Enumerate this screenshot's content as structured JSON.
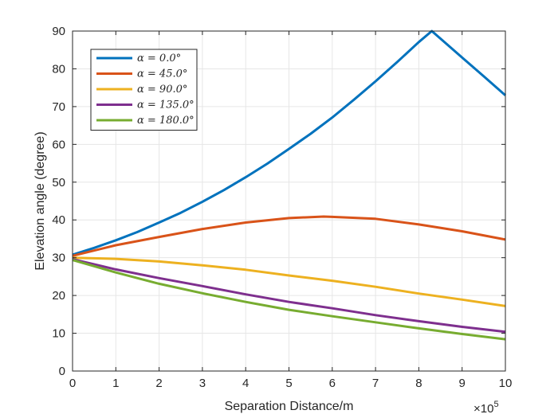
{
  "chart_data": {
    "type": "line",
    "title": "",
    "xlabel": "Separation Distance/m",
    "ylabel": "Elevation angle (degree)",
    "x_exponent_label": "×10",
    "x_exponent_power": "5",
    "xlim": [
      0,
      10
    ],
    "ylim": [
      0,
      90
    ],
    "xticks": [
      0,
      1,
      2,
      3,
      4,
      5,
      6,
      7,
      8,
      9,
      10
    ],
    "yticks": [
      0,
      10,
      20,
      30,
      40,
      50,
      60,
      70,
      80,
      90
    ],
    "xtick_labels": [
      "0",
      "1",
      "2",
      "3",
      "4",
      "5",
      "6",
      "7",
      "8",
      "9",
      "10"
    ],
    "ytick_labels": [
      "0",
      "10",
      "20",
      "30",
      "40",
      "50",
      "60",
      "70",
      "80",
      "90"
    ],
    "grid": true,
    "legend_position": "top-left",
    "series": [
      {
        "name": "α = 0.0°",
        "color": "#0072BD",
        "x": [
          0,
          0.5,
          1,
          1.5,
          2,
          2.5,
          3,
          3.5,
          4,
          4.5,
          5,
          5.5,
          6,
          6.5,
          7,
          7.5,
          8,
          8.3,
          8.6,
          9,
          9.5,
          10
        ],
        "y": [
          30.8,
          32.6,
          34.6,
          36.8,
          39.3,
          41.9,
          44.8,
          47.9,
          51.3,
          54.9,
          58.8,
          62.8,
          67.1,
          71.8,
          76.7,
          81.8,
          87.1,
          90,
          87.0,
          83.0,
          78.0,
          73.0
        ]
      },
      {
        "name": "α = 45.0°",
        "color": "#D95319",
        "x": [
          0,
          1,
          2,
          3,
          4,
          5,
          5.8,
          6,
          7,
          8,
          9,
          10
        ],
        "y": [
          30.5,
          33.3,
          35.5,
          37.6,
          39.3,
          40.5,
          40.9,
          40.8,
          40.3,
          38.8,
          37.0,
          34.8
        ]
      },
      {
        "name": "α = 90.0°",
        "color": "#EDB120",
        "x": [
          0,
          1,
          2,
          3,
          4,
          5,
          6,
          7,
          8,
          9,
          10
        ],
        "y": [
          30.0,
          29.7,
          29.0,
          28.0,
          26.8,
          25.3,
          23.9,
          22.3,
          20.5,
          18.9,
          17.2
        ]
      },
      {
        "name": "α = 135.0°",
        "color": "#7E2F8E",
        "x": [
          0,
          1,
          2,
          3,
          4,
          5,
          6,
          7,
          8,
          9,
          10
        ],
        "y": [
          29.6,
          26.9,
          24.6,
          22.5,
          20.3,
          18.3,
          16.6,
          14.8,
          13.2,
          11.7,
          10.4
        ]
      },
      {
        "name": "α = 180.0°",
        "color": "#77AC30",
        "x": [
          0,
          1,
          2,
          3,
          4,
          5,
          6,
          7,
          8,
          9,
          10
        ],
        "y": [
          29.4,
          26.1,
          23.1,
          20.6,
          18.3,
          16.2,
          14.5,
          12.9,
          11.3,
          9.8,
          8.4
        ]
      }
    ]
  }
}
